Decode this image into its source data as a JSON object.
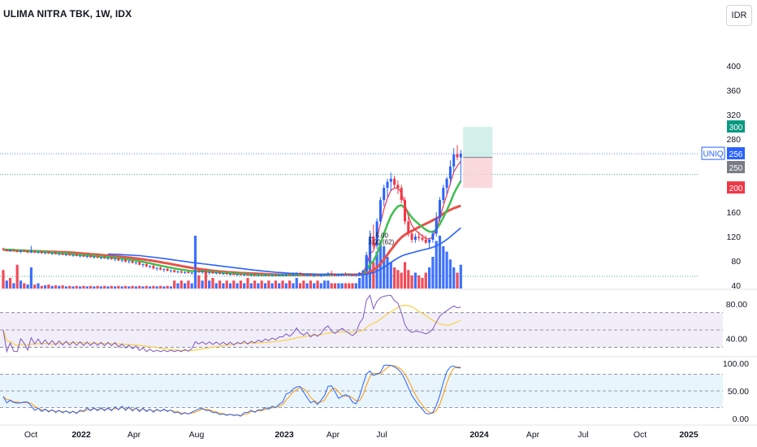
{
  "header": {
    "title": "ULIMA NITRA TBK, 1W, IDX",
    "currency": "IDR"
  },
  "chart_data": {
    "type": "candlestick",
    "symbol_tag": "UNIQ",
    "price_axis": {
      "ticks": [
        400,
        360,
        320,
        280,
        240,
        200,
        160,
        120,
        80,
        40
      ],
      "ylim": [
        35,
        460
      ]
    },
    "time_axis": {
      "labels": [
        "Oct",
        "2022",
        "Apr",
        "Aug",
        "2023",
        "Apr",
        "Jul",
        "2024",
        "Apr",
        "Jul",
        "Oct",
        "2025"
      ]
    },
    "price_labels": [
      {
        "value": "300",
        "kind": "target",
        "color": "#089981"
      },
      {
        "value": "256",
        "kind": "last",
        "color": "#2962ff"
      },
      {
        "value": "250",
        "kind": "level",
        "color": "#787b86"
      },
      {
        "value": "200",
        "kind": "stop",
        "color": "#f23645"
      }
    ],
    "annotations": [
      {
        "text": "⊥ 5.00",
        "color": "#131722"
      },
      {
        "text": "3.00 (62)",
        "color": "#131722"
      }
    ],
    "candles": [
      [
        100,
        102,
        97,
        99
      ],
      [
        99,
        100,
        96,
        97
      ],
      [
        97,
        99,
        95,
        98
      ],
      [
        98,
        100,
        96,
        97
      ],
      [
        97,
        99,
        94,
        95
      ],
      [
        95,
        98,
        93,
        97
      ],
      [
        97,
        99,
        95,
        96
      ],
      [
        96,
        98,
        93,
        94
      ],
      [
        94,
        105,
        93,
        96
      ],
      [
        96,
        98,
        93,
        94
      ],
      [
        94,
        96,
        92,
        95
      ],
      [
        95,
        97,
        92,
        93
      ],
      [
        93,
        95,
        91,
        94
      ],
      [
        94,
        96,
        92,
        92
      ],
      [
        92,
        94,
        90,
        93
      ],
      [
        93,
        95,
        91,
        91
      ],
      [
        91,
        93,
        89,
        92
      ],
      [
        92,
        94,
        90,
        90
      ],
      [
        90,
        92,
        88,
        91
      ],
      [
        91,
        93,
        89,
        89
      ],
      [
        89,
        91,
        87,
        90
      ],
      [
        90,
        92,
        88,
        88
      ],
      [
        88,
        90,
        86,
        89
      ],
      [
        89,
        91,
        87,
        87
      ],
      [
        87,
        89,
        85,
        88
      ],
      [
        88,
        90,
        86,
        86
      ],
      [
        86,
        88,
        84,
        87
      ],
      [
        87,
        89,
        85,
        85
      ],
      [
        85,
        87,
        83,
        86
      ],
      [
        86,
        88,
        84,
        84
      ],
      [
        84,
        86,
        82,
        85
      ],
      [
        85,
        87,
        82,
        83
      ],
      [
        83,
        85,
        80,
        84
      ],
      [
        84,
        86,
        80,
        81
      ],
      [
        81,
        83,
        78,
        82
      ],
      [
        82,
        84,
        78,
        79
      ],
      [
        79,
        81,
        76,
        80
      ],
      [
        80,
        82,
        76,
        77
      ],
      [
        77,
        79,
        74,
        78
      ],
      [
        78,
        80,
        73,
        74
      ],
      [
        74,
        76,
        70,
        75
      ],
      [
        75,
        77,
        70,
        71
      ],
      [
        71,
        73,
        68,
        72
      ],
      [
        72,
        74,
        66,
        68
      ],
      [
        68,
        70,
        64,
        69
      ],
      [
        69,
        71,
        65,
        66
      ],
      [
        66,
        68,
        62,
        67
      ],
      [
        67,
        69,
        63,
        64
      ],
      [
        64,
        66,
        61,
        65
      ],
      [
        65,
        66,
        61,
        62
      ],
      [
        62,
        64,
        60,
        63
      ],
      [
        63,
        65,
        60,
        61
      ],
      [
        61,
        63,
        59,
        62
      ],
      [
        62,
        64,
        60,
        60
      ],
      [
        60,
        62,
        58,
        61
      ],
      [
        61,
        85,
        59,
        64
      ],
      [
        64,
        66,
        60,
        62
      ],
      [
        62,
        64,
        59,
        63
      ],
      [
        63,
        68,
        60,
        61
      ],
      [
        61,
        63,
        58,
        62
      ],
      [
        62,
        64,
        59,
        60
      ],
      [
        60,
        62,
        58,
        61
      ],
      [
        61,
        63,
        58,
        59
      ],
      [
        59,
        61,
        57,
        60
      ],
      [
        60,
        62,
        58,
        58
      ],
      [
        58,
        60,
        56,
        59
      ],
      [
        59,
        61,
        57,
        57
      ],
      [
        57,
        59,
        56,
        58
      ],
      [
        58,
        60,
        56,
        57
      ],
      [
        57,
        59,
        55,
        58
      ],
      [
        58,
        60,
        56,
        56
      ],
      [
        56,
        58,
        55,
        57
      ],
      [
        57,
        59,
        55,
        56
      ],
      [
        56,
        58,
        55,
        57
      ],
      [
        57,
        59,
        55,
        56
      ],
      [
        56,
        58,
        55,
        57
      ],
      [
        57,
        59,
        55,
        56
      ],
      [
        56,
        58,
        55,
        57
      ],
      [
        57,
        59,
        55,
        56
      ],
      [
        56,
        58,
        55,
        57
      ],
      [
        57,
        59,
        55,
        57
      ],
      [
        57,
        59,
        55,
        58
      ],
      [
        58,
        60,
        56,
        57
      ],
      [
        57,
        59,
        55,
        58
      ],
      [
        58,
        62,
        56,
        60
      ],
      [
        60,
        62,
        57,
        58
      ],
      [
        58,
        60,
        56,
        57
      ],
      [
        57,
        59,
        55,
        58
      ],
      [
        58,
        60,
        56,
        56
      ],
      [
        56,
        58,
        54,
        57
      ],
      [
        57,
        59,
        55,
        56
      ],
      [
        56,
        58,
        54,
        57
      ],
      [
        57,
        60,
        55,
        59
      ],
      [
        59,
        62,
        56,
        60
      ],
      [
        60,
        64,
        57,
        58
      ],
      [
        58,
        60,
        55,
        57
      ],
      [
        57,
        59,
        55,
        58
      ],
      [
        58,
        60,
        56,
        59
      ],
      [
        59,
        62,
        57,
        58
      ],
      [
        58,
        60,
        56,
        57
      ],
      [
        57,
        59,
        55,
        56
      ],
      [
        56,
        58,
        54,
        57
      ],
      [
        57,
        62,
        55,
        61
      ],
      [
        61,
        66,
        58,
        64
      ],
      [
        64,
        95,
        62,
        90
      ],
      [
        90,
        130,
        85,
        120
      ],
      [
        120,
        140,
        100,
        105
      ],
      [
        105,
        150,
        100,
        145
      ],
      [
        145,
        185,
        140,
        180
      ],
      [
        180,
        205,
        170,
        200
      ],
      [
        200,
        215,
        185,
        210
      ],
      [
        210,
        225,
        195,
        215
      ],
      [
        215,
        220,
        200,
        205
      ],
      [
        205,
        212,
        190,
        200
      ],
      [
        200,
        205,
        175,
        180
      ],
      [
        180,
        185,
        140,
        145
      ],
      [
        145,
        155,
        120,
        125
      ],
      [
        125,
        130,
        110,
        115
      ],
      [
        115,
        125,
        110,
        120
      ],
      [
        120,
        128,
        113,
        118
      ],
      [
        118,
        124,
        112,
        115
      ],
      [
        115,
        122,
        108,
        110
      ],
      [
        110,
        118,
        100,
        115
      ],
      [
        115,
        130,
        110,
        125
      ],
      [
        125,
        160,
        120,
        150
      ],
      [
        150,
        185,
        145,
        180
      ],
      [
        180,
        205,
        175,
        200
      ],
      [
        200,
        218,
        190,
        215
      ],
      [
        215,
        245,
        205,
        235
      ],
      [
        235,
        265,
        225,
        255
      ],
      [
        255,
        270,
        245,
        250
      ],
      [
        250,
        262,
        210,
        256
      ]
    ],
    "volume": [
      [
        0.7,
        "#f23645"
      ],
      [
        0.3,
        "#2962ff"
      ],
      [
        0.4,
        "#f23645"
      ],
      [
        0.2,
        "#2962ff"
      ],
      [
        0.9,
        "#f23645"
      ],
      [
        0.3,
        "#2962ff"
      ],
      [
        0.2,
        "#f23645"
      ],
      [
        0.15,
        "#2962ff"
      ],
      [
        0.8,
        "#2962ff"
      ],
      [
        0.15,
        "#f23645"
      ],
      [
        0.2,
        "#2962ff"
      ],
      [
        0.1,
        "#f23645"
      ],
      [
        0.12,
        "#2962ff"
      ],
      [
        0.15,
        "#f23645"
      ],
      [
        0.1,
        "#2962ff"
      ],
      [
        0.12,
        "#f23645"
      ],
      [
        0.1,
        "#2962ff"
      ],
      [
        0.12,
        "#f23645"
      ],
      [
        0.08,
        "#2962ff"
      ],
      [
        0.1,
        "#f23645"
      ],
      [
        0.08,
        "#2962ff"
      ],
      [
        0.1,
        "#f23645"
      ],
      [
        0.08,
        "#2962ff"
      ],
      [
        0.1,
        "#f23645"
      ],
      [
        0.08,
        "#2962ff"
      ],
      [
        0.1,
        "#f23645"
      ],
      [
        0.08,
        "#2962ff"
      ],
      [
        0.1,
        "#f23645"
      ],
      [
        0.08,
        "#2962ff"
      ],
      [
        0.1,
        "#f23645"
      ],
      [
        0.08,
        "#2962ff"
      ],
      [
        0.1,
        "#f23645"
      ],
      [
        0.08,
        "#2962ff"
      ],
      [
        0.1,
        "#f23645"
      ],
      [
        0.08,
        "#2962ff"
      ],
      [
        0.1,
        "#f23645"
      ],
      [
        0.08,
        "#2962ff"
      ],
      [
        0.1,
        "#f23645"
      ],
      [
        0.08,
        "#2962ff"
      ],
      [
        0.1,
        "#f23645"
      ],
      [
        0.08,
        "#2962ff"
      ],
      [
        0.1,
        "#f23645"
      ],
      [
        0.08,
        "#2962ff"
      ],
      [
        0.1,
        "#f23645"
      ],
      [
        0.08,
        "#2962ff"
      ],
      [
        0.1,
        "#f23645"
      ],
      [
        0.08,
        "#2962ff"
      ],
      [
        0.1,
        "#f23645"
      ],
      [
        0.08,
        "#2962ff"
      ],
      [
        0.3,
        "#f23645"
      ],
      [
        0.2,
        "#2962ff"
      ],
      [
        0.3,
        "#f23645"
      ],
      [
        0.2,
        "#2962ff"
      ],
      [
        0.3,
        "#f23645"
      ],
      [
        0.2,
        "#2962ff"
      ],
      [
        2.0,
        "#2962ff"
      ],
      [
        0.5,
        "#f23645"
      ],
      [
        0.3,
        "#2962ff"
      ],
      [
        0.6,
        "#f23645"
      ],
      [
        0.3,
        "#2962ff"
      ],
      [
        0.4,
        "#f23645"
      ],
      [
        0.2,
        "#2962ff"
      ],
      [
        0.3,
        "#f23645"
      ],
      [
        0.2,
        "#2962ff"
      ],
      [
        0.3,
        "#f23645"
      ],
      [
        0.2,
        "#2962ff"
      ],
      [
        0.3,
        "#f23645"
      ],
      [
        0.2,
        "#2962ff"
      ],
      [
        0.3,
        "#f23645"
      ],
      [
        0.2,
        "#2962ff"
      ],
      [
        0.4,
        "#f23645"
      ],
      [
        0.2,
        "#2962ff"
      ],
      [
        0.3,
        "#f23645"
      ],
      [
        0.2,
        "#2962ff"
      ],
      [
        0.3,
        "#f23645"
      ],
      [
        0.2,
        "#2962ff"
      ],
      [
        0.3,
        "#f23645"
      ],
      [
        0.2,
        "#2962ff"
      ],
      [
        0.3,
        "#f23645"
      ],
      [
        0.2,
        "#2962ff"
      ],
      [
        0.3,
        "#f23645"
      ],
      [
        0.2,
        "#2962ff"
      ],
      [
        0.3,
        "#f23645"
      ],
      [
        0.2,
        "#2962ff"
      ],
      [
        0.4,
        "#2962ff"
      ],
      [
        0.2,
        "#f23645"
      ],
      [
        0.3,
        "#f23645"
      ],
      [
        0.2,
        "#2962ff"
      ],
      [
        0.3,
        "#f23645"
      ],
      [
        0.2,
        "#2962ff"
      ],
      [
        0.3,
        "#f23645"
      ],
      [
        0.2,
        "#2962ff"
      ],
      [
        0.3,
        "#2962ff"
      ],
      [
        0.3,
        "#2962ff"
      ],
      [
        0.2,
        "#f23645"
      ],
      [
        0.2,
        "#f23645"
      ],
      [
        0.2,
        "#2962ff"
      ],
      [
        0.2,
        "#2962ff"
      ],
      [
        0.2,
        "#f23645"
      ],
      [
        0.2,
        "#f23645"
      ],
      [
        0.2,
        "#f23645"
      ],
      [
        0.2,
        "#2962ff"
      ],
      [
        0.4,
        "#2962ff"
      ],
      [
        0.5,
        "#2962ff"
      ],
      [
        1.2,
        "#2962ff"
      ],
      [
        1.8,
        "#2962ff"
      ],
      [
        1.0,
        "#f23645"
      ],
      [
        1.4,
        "#2962ff"
      ],
      [
        1.7,
        "#2962ff"
      ],
      [
        1.6,
        "#2962ff"
      ],
      [
        1.2,
        "#2962ff"
      ],
      [
        1.0,
        "#2962ff"
      ],
      [
        0.8,
        "#f23645"
      ],
      [
        0.7,
        "#f23645"
      ],
      [
        0.6,
        "#f23645"
      ],
      [
        1.0,
        "#f23645"
      ],
      [
        0.7,
        "#f23645"
      ],
      [
        0.5,
        "#f23645"
      ],
      [
        0.6,
        "#2962ff"
      ],
      [
        0.5,
        "#f23645"
      ],
      [
        0.4,
        "#f23645"
      ],
      [
        0.6,
        "#f23645"
      ],
      [
        0.8,
        "#2962ff"
      ],
      [
        1.2,
        "#2962ff"
      ],
      [
        1.8,
        "#2962ff"
      ],
      [
        2.0,
        "#2962ff"
      ],
      [
        1.6,
        "#2962ff"
      ],
      [
        1.4,
        "#2962ff"
      ],
      [
        1.1,
        "#2962ff"
      ],
      [
        0.8,
        "#2962ff"
      ],
      [
        0.6,
        "#f23645"
      ],
      [
        0.9,
        "#2962ff"
      ]
    ],
    "rsi": {
      "ticks": [
        "80.00",
        "40.00"
      ],
      "ylim": [
        20,
        95
      ],
      "bands": [
        70,
        50,
        30
      ]
    },
    "stoch": {
      "ticks": [
        "100.00",
        "50.00",
        "0.00"
      ],
      "ylim": [
        -10,
        110
      ],
      "bands": [
        80,
        50,
        20
      ]
    }
  }
}
